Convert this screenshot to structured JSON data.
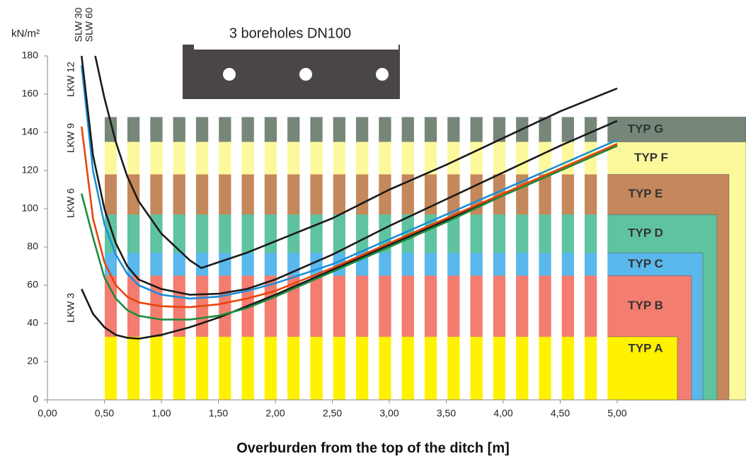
{
  "chart_data": {
    "type": "line",
    "annotation": "3 boreholes DN100",
    "y_label": "kN/m²",
    "x_label": "Overburden from the top of the ditch [m]",
    "xlim": [
      0,
      5
    ],
    "ylim": [
      0,
      180
    ],
    "xticks": [
      {
        "value": 0,
        "label": "0,00"
      },
      {
        "value": 0.5,
        "label": "0,50"
      },
      {
        "value": 1,
        "label": "1,00"
      },
      {
        "value": 1.5,
        "label": "1,50"
      },
      {
        "value": 2,
        "label": "2,00"
      },
      {
        "value": 2.5,
        "label": "2,50"
      },
      {
        "value": 3,
        "label": "3,00"
      },
      {
        "value": 3.5,
        "label": "3,50"
      },
      {
        "value": 4,
        "label": "4,00"
      },
      {
        "value": 4.5,
        "label": "4,50"
      },
      {
        "value": 5,
        "label": "5,00"
      }
    ],
    "yticks": [
      0,
      20,
      40,
      60,
      80,
      100,
      120,
      140,
      160,
      180
    ],
    "bands": [
      {
        "name": "TYP G",
        "upper": 148,
        "color": "#76877a"
      },
      {
        "name": "TYP F",
        "upper": 135,
        "color": "#fcf99d"
      },
      {
        "name": "TYP E",
        "upper": 118,
        "color": "#c5885c"
      },
      {
        "name": "TYP D",
        "upper": 97,
        "color": "#5fc3a0"
      },
      {
        "name": "TYP C",
        "upper": 77,
        "color": "#5ab8ec"
      },
      {
        "name": "TYP B",
        "upper": 65,
        "color": "#f37d70"
      },
      {
        "name": "TYP A",
        "upper": 33,
        "color": "#fff200"
      }
    ],
    "series": [
      {
        "name": "LKW 3",
        "color": "#1a1a1a",
        "x": [
          0.3,
          0.4,
          0.5,
          0.6,
          0.7,
          0.8,
          1.0,
          1.25,
          1.5,
          1.75,
          2.0,
          2.5,
          3.0,
          3.5,
          4.0,
          4.5,
          5.0
        ],
        "values": [
          58,
          45,
          38,
          34,
          32.5,
          32,
          34,
          38,
          43,
          49,
          55,
          68,
          81,
          94,
          107,
          120,
          133
        ]
      },
      {
        "name": "LKW 6",
        "color": "#1e8c3c",
        "x": [
          0.3,
          0.4,
          0.5,
          0.6,
          0.7,
          0.8,
          1.0,
          1.25,
          1.5,
          1.75,
          2.0,
          2.5,
          3.0,
          3.5,
          4.0,
          4.5,
          5.0
        ],
        "values": [
          108,
          85,
          64,
          53,
          47,
          44,
          42,
          42,
          44,
          48,
          54,
          67,
          80,
          93,
          107,
          120,
          133
        ]
      },
      {
        "name": "LKW 9",
        "color": "#e8440c",
        "x": [
          0.3,
          0.4,
          0.5,
          0.6,
          0.7,
          0.8,
          1.0,
          1.25,
          1.5,
          1.75,
          2.0,
          2.5,
          3.0,
          3.5,
          4.0,
          4.5,
          5.0
        ],
        "values": [
          143,
          95,
          72,
          60,
          54,
          51,
          49,
          48.5,
          50,
          53,
          57,
          69,
          82,
          95,
          108,
          121,
          134
        ]
      },
      {
        "name": "LKW 12",
        "color": "#1b8fd8",
        "x": [
          0.3,
          0.4,
          0.5,
          0.6,
          0.7,
          0.8,
          1.0,
          1.25,
          1.5,
          1.75,
          2.0,
          2.5,
          3.0,
          3.5,
          4.0,
          4.5,
          5.0
        ],
        "values": [
          175,
          120,
          92,
          76,
          66,
          60,
          55,
          53,
          54,
          57,
          61,
          71,
          84,
          97,
          110,
          123,
          136
        ]
      },
      {
        "name": "SLW 30",
        "color": "#1a1a1a",
        "x": [
          0.3,
          0.4,
          0.5,
          0.6,
          0.7,
          0.8,
          1.0,
          1.25,
          1.5,
          1.75,
          2.0,
          2.5,
          3.0,
          3.5,
          4.0,
          4.5,
          5.0
        ],
        "values": [
          180,
          128,
          100,
          82,
          70,
          63,
          58,
          55,
          55.5,
          58,
          63,
          76,
          91,
          105,
          119,
          133,
          146
        ]
      },
      {
        "name": "SLW 60",
        "color": "#1a1a1a",
        "x": [
          0.42,
          0.5,
          0.6,
          0.7,
          0.8,
          1.0,
          1.25,
          1.35,
          1.5,
          1.75,
          2.0,
          2.5,
          3.0,
          3.5,
          4.0,
          4.5,
          5.0
        ],
        "values": [
          180,
          158,
          135,
          117,
          104,
          87,
          73,
          69,
          72,
          77,
          83,
          95,
          110,
          123,
          137,
          151,
          163
        ]
      }
    ]
  }
}
